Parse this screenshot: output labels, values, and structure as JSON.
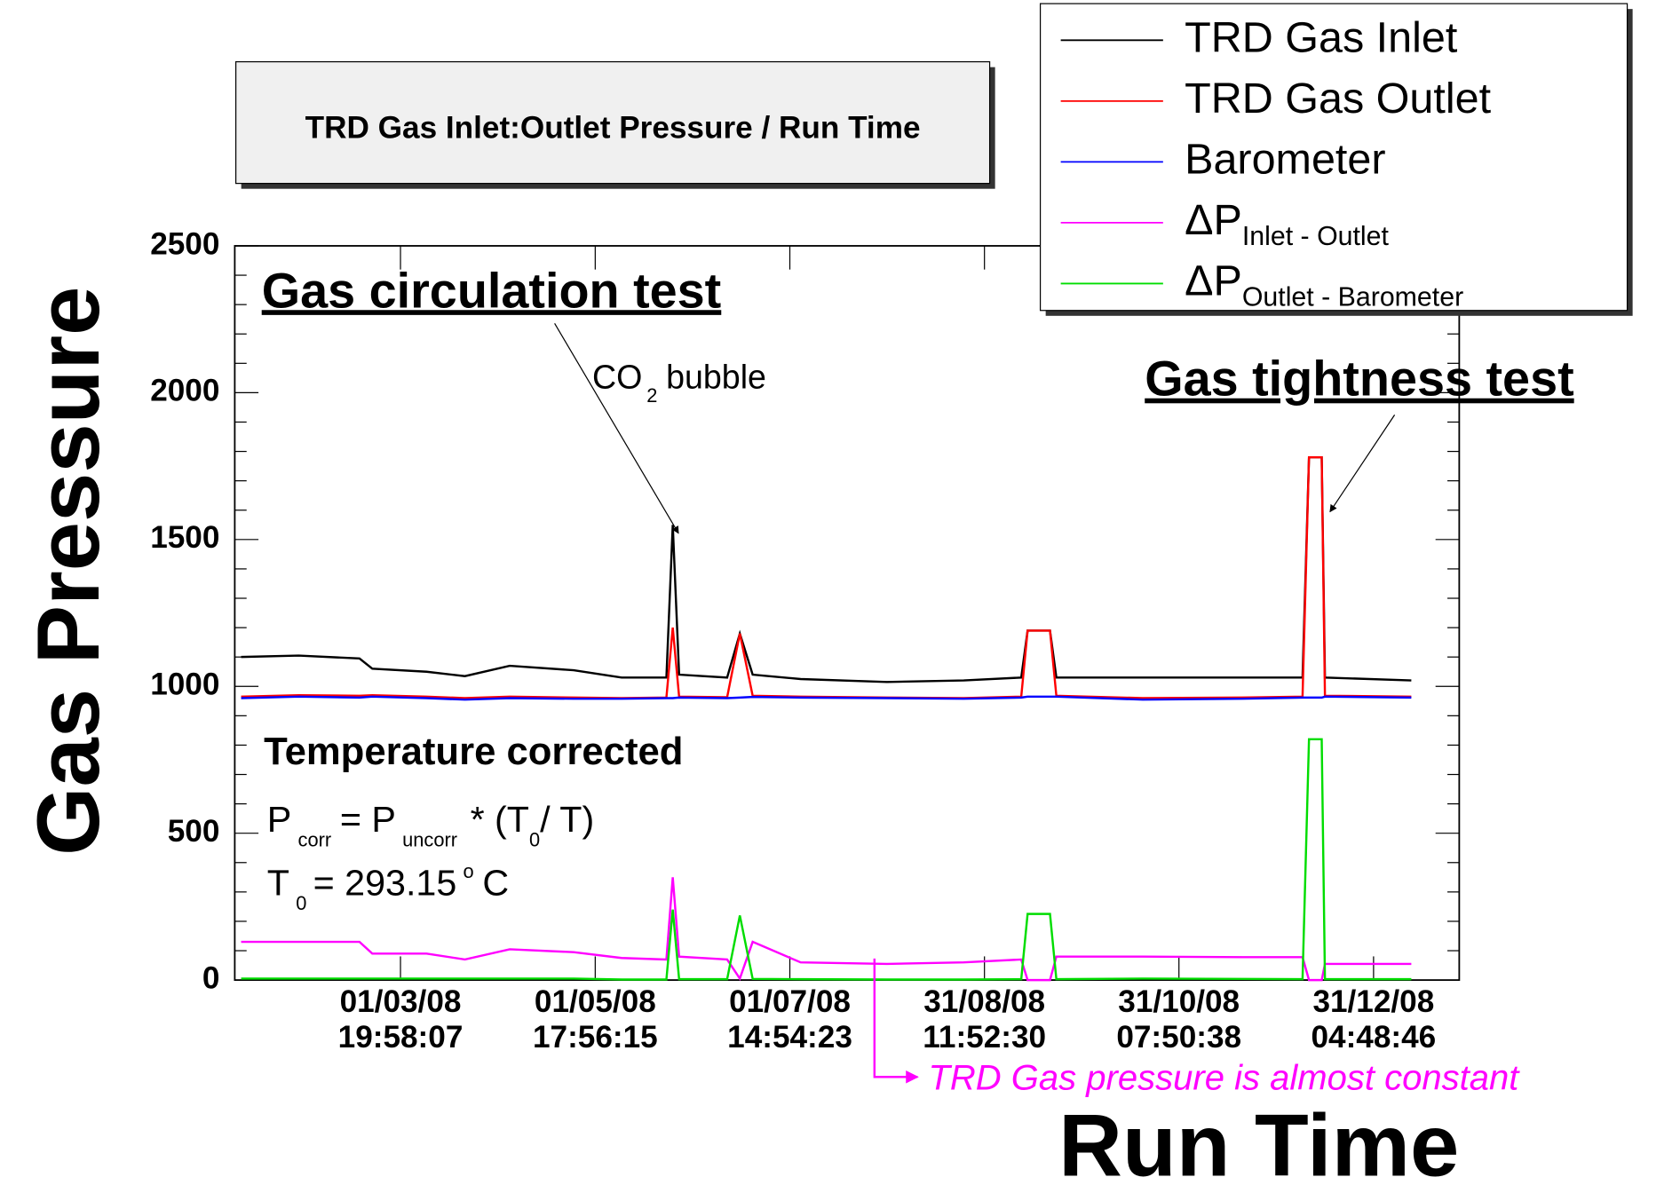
{
  "chart_data": {
    "type": "line",
    "title": "TRD Gas Inlet:Outlet Pressure / Run Time",
    "y_label": "Gas Pressure",
    "x_label": "Run Time",
    "xlim": [
      "2008-01-10T00:00:00",
      "2009-01-27T00:00:00"
    ],
    "xticks": [
      {
        "value": "2008-03-01T19:58:07",
        "label": [
          "01/03/08",
          "19:58:07"
        ]
      },
      {
        "value": "2008-05-01T17:56:15",
        "label": [
          "01/05/08",
          "17:56:15"
        ]
      },
      {
        "value": "2008-07-01T14:54:23",
        "label": [
          "01/07/08",
          "14:54:23"
        ]
      },
      {
        "value": "2008-08-31T11:52:30",
        "label": [
          "31/08/08",
          "11:52:30"
        ]
      },
      {
        "value": "2008-10-31T07:50:38",
        "label": [
          "31/10/08",
          "07:50:38"
        ]
      },
      {
        "value": "2008-12-31T04:48:46",
        "label": [
          "31/12/08",
          "04:48:46"
        ]
      }
    ],
    "ylim": [
      0,
      2500
    ],
    "yticks": [
      0,
      500,
      1000,
      1500,
      2000,
      2500
    ],
    "x": [
      "2008-01-12T00:00:00",
      "2008-01-30T00:00:00",
      "2008-02-18T00:00:00",
      "2008-02-22T00:00:00",
      "2008-03-10T00:00:00",
      "2008-03-22T00:00:00",
      "2008-04-05T00:00:00",
      "2008-04-25T00:00:00",
      "2008-05-10T00:00:00",
      "2008-05-24T00:00:00",
      "2008-05-26T00:00:00",
      "2008-05-28T00:00:00",
      "2008-06-12T00:00:00",
      "2008-06-16T00:00:00",
      "2008-06-20T00:00:00",
      "2008-07-05T00:00:00",
      "2008-08-01T00:00:00",
      "2008-08-25T00:00:00",
      "2008-09-12T00:00:00",
      "2008-09-14T00:00:00",
      "2008-09-21T00:00:00",
      "2008-09-23T00:00:00",
      "2008-10-20T00:00:00",
      "2008-11-20T00:00:00",
      "2008-12-09T00:00:00",
      "2008-12-11T00:00:00",
      "2008-12-15T00:00:00",
      "2008-12-16T00:00:00",
      "2009-01-12T00:00:00"
    ],
    "series": [
      {
        "name": "TRD Gas Inlet",
        "color": "#000000",
        "values": [
          1100,
          1105,
          1095,
          1060,
          1050,
          1035,
          1070,
          1055,
          1030,
          1030,
          1550,
          1040,
          1030,
          1180,
          1040,
          1025,
          1015,
          1020,
          1030,
          1190,
          1190,
          1030,
          1030,
          1030,
          1030,
          1780,
          1780,
          1030,
          1020
        ]
      },
      {
        "name": "TRD Gas Outlet",
        "color": "#ff0000",
        "values": [
          965,
          970,
          968,
          970,
          965,
          960,
          965,
          962,
          960,
          962,
          1200,
          965,
          963,
          1180,
          968,
          965,
          962,
          960,
          965,
          1190,
          1190,
          968,
          960,
          962,
          965,
          1780,
          1780,
          968,
          965
        ]
      },
      {
        "name": "Barometer",
        "color": "#0000ff",
        "values": [
          960,
          965,
          962,
          965,
          960,
          955,
          960,
          958,
          958,
          960,
          960,
          962,
          960,
          962,
          964,
          962,
          960,
          958,
          962,
          965,
          965,
          965,
          955,
          958,
          962,
          962,
          962,
          965,
          962
        ]
      },
      {
        "name": "ΔP",
        "name_subscript": "Inlet - Outlet",
        "color": "#ff00ff",
        "values": [
          130,
          130,
          130,
          90,
          90,
          70,
          105,
          95,
          75,
          70,
          350,
          80,
          70,
          5,
          130,
          60,
          55,
          60,
          70,
          0,
          0,
          80,
          80,
          78,
          78,
          0,
          0,
          55,
          55
        ]
      },
      {
        "name": "ΔP",
        "name_subscript": "Outlet - Barometer",
        "color": "#00dd00",
        "values": [
          5,
          5,
          5,
          5,
          5,
          5,
          5,
          5,
          2,
          2,
          240,
          3,
          3,
          220,
          4,
          3,
          2,
          2,
          3,
          225,
          225,
          3,
          5,
          4,
          3,
          820,
          820,
          3,
          3
        ]
      }
    ],
    "annotations": {
      "circulation": "Gas circulation test",
      "bubble": [
        "CO",
        "2",
        "bubble"
      ],
      "tightness": "Gas tightness test",
      "temperature": "Temperature corrected",
      "formula": [
        "P",
        "corr",
        "= P",
        "uncorr",
        "* (T",
        "0",
        "/ T)"
      ],
      "t0": [
        "T",
        "0",
        "= 293.15",
        "o",
        "C"
      ],
      "constant": "TRD Gas pressure is almost constant"
    }
  }
}
